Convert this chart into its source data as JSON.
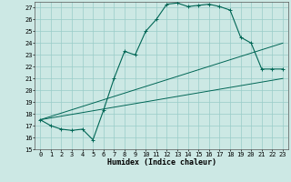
{
  "xlabel": "Humidex (Indice chaleur)",
  "background_color": "#cce8e4",
  "grid_color": "#99ccc8",
  "line_color": "#006655",
  "xlim": [
    -0.5,
    23.5
  ],
  "ylim": [
    15,
    27.5
  ],
  "xticks": [
    0,
    1,
    2,
    3,
    4,
    5,
    6,
    7,
    8,
    9,
    10,
    11,
    12,
    13,
    14,
    15,
    16,
    17,
    18,
    19,
    20,
    21,
    22,
    23
  ],
  "yticks": [
    15,
    16,
    17,
    18,
    19,
    20,
    21,
    22,
    23,
    24,
    25,
    26,
    27
  ],
  "line1_x": [
    0,
    1,
    2,
    3,
    4,
    5,
    6,
    7,
    8,
    9,
    10,
    11,
    12,
    13,
    14,
    15,
    16,
    17,
    18,
    19,
    20,
    21,
    22,
    23
  ],
  "line1_y": [
    17.5,
    17.0,
    16.7,
    16.6,
    16.7,
    15.8,
    18.3,
    21.0,
    23.3,
    23.0,
    25.0,
    26.0,
    27.3,
    27.4,
    27.1,
    27.2,
    27.3,
    27.1,
    26.8,
    24.5,
    24.0,
    21.8,
    21.8,
    21.8
  ],
  "line2_x": [
    0,
    23
  ],
  "line2_y": [
    17.5,
    21.0
  ],
  "line3_x": [
    0,
    23
  ],
  "line3_y": [
    17.5,
    24.0
  ]
}
